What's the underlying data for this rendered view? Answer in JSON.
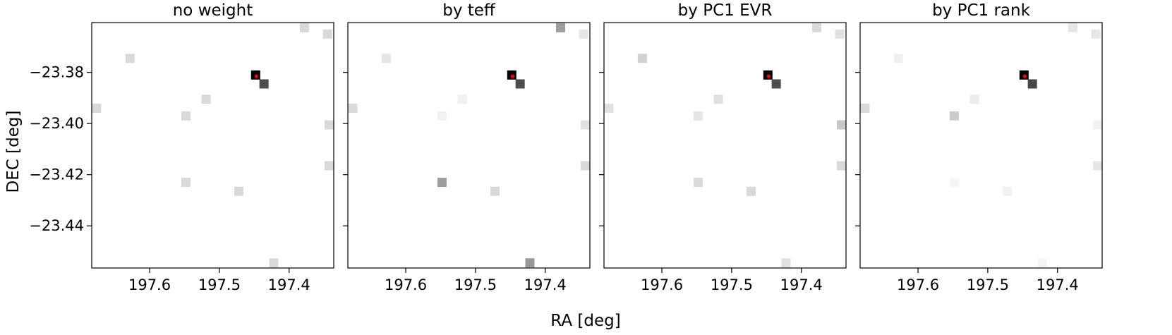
{
  "figure": {
    "xlabel": "RA [deg]",
    "ylabel": "DEC [deg]"
  },
  "colors": {
    "target_marker": "#ff0000",
    "axes": "#000000",
    "background": "#ffffff"
  },
  "chart_data": [
    {
      "type": "heatmap",
      "title": "no weight",
      "x_axis_inverted": true,
      "xlim": [
        197.683,
        197.336
      ],
      "ylim": [
        -23.4565,
        -23.3605
      ],
      "xticks": [
        197.6,
        197.5,
        197.4
      ],
      "xtick_labels": [
        "197.6",
        "197.5",
        "197.4"
      ],
      "yticks": [
        -23.38,
        -23.4,
        -23.42,
        -23.44
      ],
      "ytick_labels": [
        "−23.38",
        "−23.40",
        "−23.42",
        "−23.44"
      ],
      "target": {
        "ra": 197.447,
        "dec": -23.3815
      },
      "cells": [
        {
          "ra": 197.448,
          "dec": -23.381,
          "intensity": 1.0
        },
        {
          "ra": 197.436,
          "dec": -23.3845,
          "intensity": 0.7
        },
        {
          "ra": 197.378,
          "dec": -23.3625,
          "intensity": 0.15
        },
        {
          "ra": 197.628,
          "dec": -23.3745,
          "intensity": 0.15
        },
        {
          "ra": 197.345,
          "dec": -23.365,
          "intensity": 0.15
        },
        {
          "ra": 197.519,
          "dec": -23.3905,
          "intensity": 0.15
        },
        {
          "ra": 197.676,
          "dec": -23.394,
          "intensity": 0.15
        },
        {
          "ra": 197.548,
          "dec": -23.397,
          "intensity": 0.15
        },
        {
          "ra": 197.34,
          "dec": -23.4005,
          "intensity": 0.15
        },
        {
          "ra": 197.34,
          "dec": -23.4165,
          "intensity": 0.15
        },
        {
          "ra": 197.548,
          "dec": -23.423,
          "intensity": 0.15
        },
        {
          "ra": 197.472,
          "dec": -23.4265,
          "intensity": 0.15
        },
        {
          "ra": 197.422,
          "dec": -23.4545,
          "intensity": 0.15
        }
      ]
    },
    {
      "type": "heatmap",
      "title": "by teff",
      "x_axis_inverted": true,
      "xlim": [
        197.683,
        197.336
      ],
      "ylim": [
        -23.4565,
        -23.3605
      ],
      "xticks": [
        197.6,
        197.5,
        197.4
      ],
      "xtick_labels": [
        "197.6",
        "197.5",
        "197.4"
      ],
      "yticks": [
        -23.38,
        -23.4,
        -23.42,
        -23.44
      ],
      "ytick_labels": [
        "",
        "",
        "",
        ""
      ],
      "target": {
        "ra": 197.447,
        "dec": -23.3815
      },
      "cells": [
        {
          "ra": 197.448,
          "dec": -23.381,
          "intensity": 1.0
        },
        {
          "ra": 197.436,
          "dec": -23.3845,
          "intensity": 0.7
        },
        {
          "ra": 197.378,
          "dec": -23.3625,
          "intensity": 0.38
        },
        {
          "ra": 197.628,
          "dec": -23.3745,
          "intensity": 0.1
        },
        {
          "ra": 197.345,
          "dec": -23.365,
          "intensity": 0.1
        },
        {
          "ra": 197.519,
          "dec": -23.3905,
          "intensity": 0.06
        },
        {
          "ra": 197.676,
          "dec": -23.394,
          "intensity": 0.15
        },
        {
          "ra": 197.548,
          "dec": -23.397,
          "intensity": 0.05
        },
        {
          "ra": 197.34,
          "dec": -23.4005,
          "intensity": 0.12
        },
        {
          "ra": 197.34,
          "dec": -23.4165,
          "intensity": 0.15
        },
        {
          "ra": 197.548,
          "dec": -23.423,
          "intensity": 0.38
        },
        {
          "ra": 197.472,
          "dec": -23.4265,
          "intensity": 0.15
        },
        {
          "ra": 197.422,
          "dec": -23.4545,
          "intensity": 0.4
        }
      ]
    },
    {
      "type": "heatmap",
      "title": "by PC1 EVR",
      "x_axis_inverted": true,
      "xlim": [
        197.683,
        197.336
      ],
      "ylim": [
        -23.4565,
        -23.3605
      ],
      "xticks": [
        197.6,
        197.5,
        197.4
      ],
      "xtick_labels": [
        "197.6",
        "197.5",
        "197.4"
      ],
      "yticks": [
        -23.38,
        -23.4,
        -23.42,
        -23.44
      ],
      "ytick_labels": [
        "",
        "",
        "",
        ""
      ],
      "target": {
        "ra": 197.447,
        "dec": -23.3815
      },
      "cells": [
        {
          "ra": 197.448,
          "dec": -23.381,
          "intensity": 1.0
        },
        {
          "ra": 197.436,
          "dec": -23.3845,
          "intensity": 0.7
        },
        {
          "ra": 197.378,
          "dec": -23.3625,
          "intensity": 0.15
        },
        {
          "ra": 197.628,
          "dec": -23.3745,
          "intensity": 0.18
        },
        {
          "ra": 197.345,
          "dec": -23.365,
          "intensity": 0.12
        },
        {
          "ra": 197.519,
          "dec": -23.3905,
          "intensity": 0.12
        },
        {
          "ra": 197.676,
          "dec": -23.394,
          "intensity": 0.12
        },
        {
          "ra": 197.548,
          "dec": -23.397,
          "intensity": 0.1
        },
        {
          "ra": 197.34,
          "dec": -23.4005,
          "intensity": 0.22
        },
        {
          "ra": 197.34,
          "dec": -23.4165,
          "intensity": 0.15
        },
        {
          "ra": 197.548,
          "dec": -23.423,
          "intensity": 0.15
        },
        {
          "ra": 197.472,
          "dec": -23.4265,
          "intensity": 0.15
        },
        {
          "ra": 197.422,
          "dec": -23.4545,
          "intensity": 0.12
        }
      ]
    },
    {
      "type": "heatmap",
      "title": "by PC1 rank",
      "x_axis_inverted": true,
      "xlim": [
        197.683,
        197.336
      ],
      "ylim": [
        -23.4565,
        -23.3605
      ],
      "xticks": [
        197.6,
        197.5,
        197.4
      ],
      "xtick_labels": [
        "197.6",
        "197.5",
        "197.4"
      ],
      "yticks": [
        -23.38,
        -23.4,
        -23.42,
        -23.44
      ],
      "ytick_labels": [
        "",
        "",
        "",
        ""
      ],
      "target": {
        "ra": 197.447,
        "dec": -23.3815
      },
      "cells": [
        {
          "ra": 197.448,
          "dec": -23.381,
          "intensity": 1.0
        },
        {
          "ra": 197.436,
          "dec": -23.3845,
          "intensity": 0.72
        },
        {
          "ra": 197.378,
          "dec": -23.3625,
          "intensity": 0.1
        },
        {
          "ra": 197.628,
          "dec": -23.3745,
          "intensity": 0.06
        },
        {
          "ra": 197.345,
          "dec": -23.365,
          "intensity": 0.1
        },
        {
          "ra": 197.519,
          "dec": -23.3905,
          "intensity": 0.08
        },
        {
          "ra": 197.676,
          "dec": -23.394,
          "intensity": 0.15
        },
        {
          "ra": 197.548,
          "dec": -23.397,
          "intensity": 0.2
        },
        {
          "ra": 197.34,
          "dec": -23.4005,
          "intensity": 0.05
        },
        {
          "ra": 197.34,
          "dec": -23.4165,
          "intensity": 0.1
        },
        {
          "ra": 197.548,
          "dec": -23.423,
          "intensity": 0.04
        },
        {
          "ra": 197.472,
          "dec": -23.4265,
          "intensity": 0.05
        },
        {
          "ra": 197.422,
          "dec": -23.4545,
          "intensity": 0.04
        }
      ]
    }
  ]
}
